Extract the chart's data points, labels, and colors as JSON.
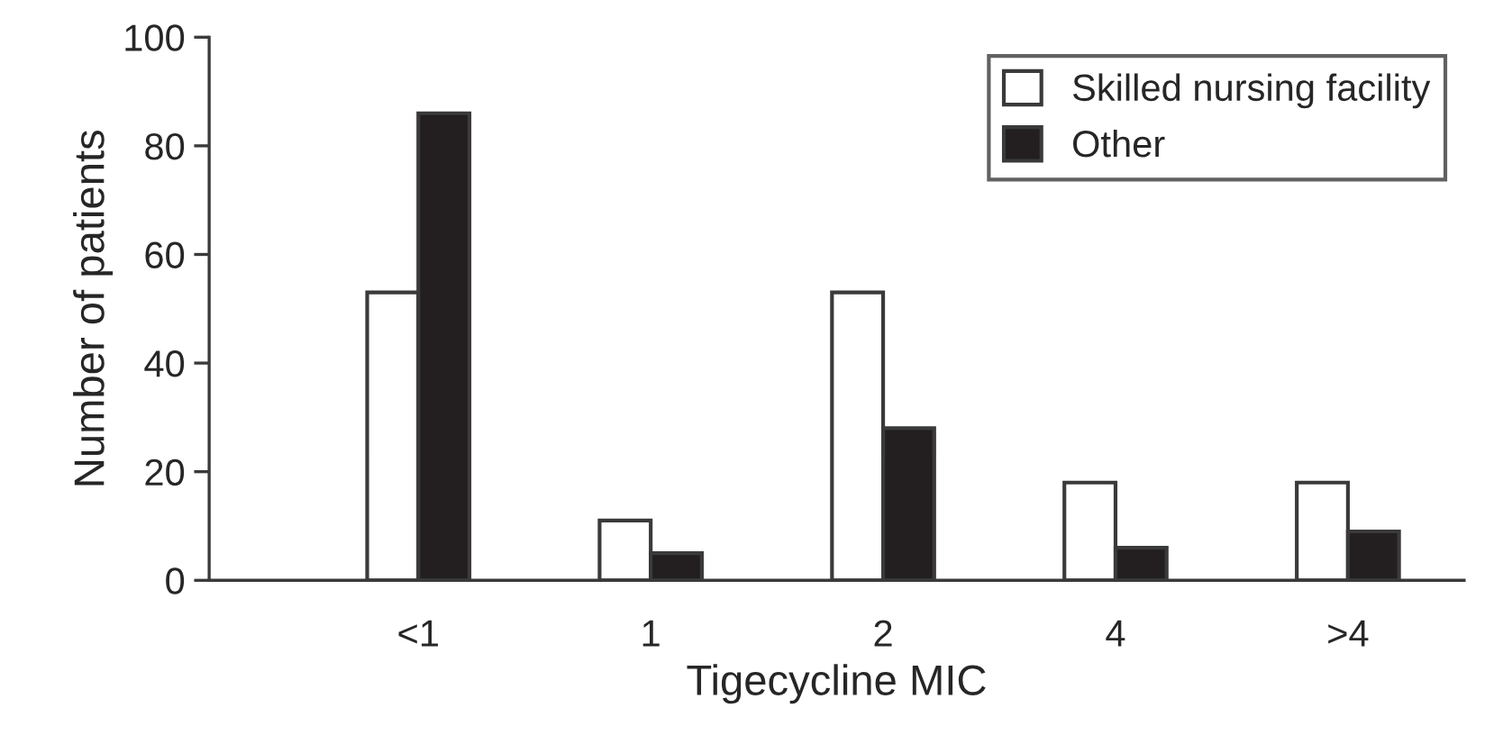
{
  "chart_data": {
    "type": "bar",
    "xlabel": "Tigecycline MIC",
    "ylabel": "Number of patients",
    "categories": [
      "<1",
      "1",
      "2",
      "4",
      ">4"
    ],
    "series": [
      {
        "name": "Skilled nursing facility",
        "color": "#ffffff",
        "values": [
          53,
          11,
          53,
          18,
          18
        ]
      },
      {
        "name": "Other",
        "color": "#231f20",
        "values": [
          86,
          5,
          28,
          6,
          9
        ]
      }
    ],
    "ylim": [
      0,
      100
    ],
    "yticks": [
      0,
      20,
      40,
      60,
      80,
      100
    ],
    "grid": false,
    "legend": "top right"
  }
}
